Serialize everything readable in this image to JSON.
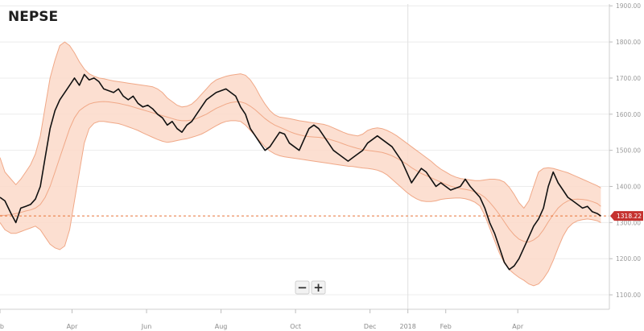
{
  "chart_data": {
    "type": "line",
    "title": "NEPSE",
    "xlabel": "",
    "ylabel": "",
    "ylim": [
      1060,
      1905
    ],
    "xlim": [
      "2017-02-01",
      "2018-06-15"
    ],
    "grid": true,
    "legend": "none",
    "y_ticks": [
      "1100.00",
      "1200.00",
      "1300.00",
      "1400.00",
      "1500.00",
      "1600.00",
      "1700.00",
      "1800.00",
      "1900.00"
    ],
    "x_ticks": [
      {
        "date": "2017-02-01",
        "label": "eb"
      },
      {
        "date": "2017-04-01",
        "label": "Apr"
      },
      {
        "date": "2017-06-01",
        "label": "Jun"
      },
      {
        "date": "2017-08-01",
        "label": "Aug"
      },
      {
        "date": "2017-10-01",
        "label": "Oct"
      },
      {
        "date": "2017-12-01",
        "label": "Dec"
      },
      {
        "date": "2018-01-01",
        "label": "2018"
      },
      {
        "date": "2018-02-01",
        "label": "Feb"
      },
      {
        "date": "2018-04-01",
        "label": "Apr"
      }
    ],
    "last_value": "1318.22",
    "reference_line": 1318.22,
    "colors": {
      "price": "#111111",
      "band_fill": "#fbd9c9",
      "band_line": "#f0a887",
      "mid_line": "#f0a887",
      "reference": "#e8763a",
      "last_label_bg": "#c5322f",
      "grid": "#ececec"
    },
    "series": [
      {
        "x": [
          "2017-02-01",
          "2017-02-05",
          "2017-02-10",
          "2017-02-14",
          "2017-02-18",
          "2017-02-22",
          "2017-02-26",
          "2017-03-02",
          "2017-03-06",
          "2017-03-10",
          "2017-03-14",
          "2017-03-18",
          "2017-03-22",
          "2017-03-26",
          "2017-03-30",
          "2017-04-03",
          "2017-04-07",
          "2017-04-11",
          "2017-04-15",
          "2017-04-19",
          "2017-04-23",
          "2017-04-27",
          "2017-05-01",
          "2017-05-05",
          "2017-05-09",
          "2017-05-13",
          "2017-05-17",
          "2017-05-21",
          "2017-05-25",
          "2017-05-29",
          "2017-06-02",
          "2017-06-06",
          "2017-06-10",
          "2017-06-14",
          "2017-06-18",
          "2017-06-22",
          "2017-06-26",
          "2017-06-30",
          "2017-07-04",
          "2017-07-08",
          "2017-07-12",
          "2017-07-16",
          "2017-07-20",
          "2017-07-24",
          "2017-07-28",
          "2017-08-01",
          "2017-08-05",
          "2017-08-09",
          "2017-08-13",
          "2017-08-17",
          "2017-08-21",
          "2017-08-25",
          "2017-08-29",
          "2017-09-02",
          "2017-09-06",
          "2017-09-10",
          "2017-09-14",
          "2017-09-18",
          "2017-09-22",
          "2017-09-26",
          "2017-09-30",
          "2017-10-04",
          "2017-10-08",
          "2017-10-12",
          "2017-10-16",
          "2017-10-20",
          "2017-10-24",
          "2017-10-28",
          "2017-11-01",
          "2017-11-05",
          "2017-11-09",
          "2017-11-13",
          "2017-11-17",
          "2017-11-21",
          "2017-11-25",
          "2017-11-29",
          "2017-12-03",
          "2017-12-07",
          "2017-12-11",
          "2017-12-15",
          "2017-12-19",
          "2017-12-23",
          "2017-12-27",
          "2017-12-31",
          "2018-01-04",
          "2018-01-08",
          "2018-01-12",
          "2018-01-16",
          "2018-01-20",
          "2018-01-24",
          "2018-01-28",
          "2018-02-01",
          "2018-02-05",
          "2018-02-09",
          "2018-02-13",
          "2018-02-17",
          "2018-02-21",
          "2018-02-25",
          "2018-03-01",
          "2018-03-05",
          "2018-03-09",
          "2018-03-13",
          "2018-03-17",
          "2018-03-21",
          "2018-03-25",
          "2018-03-29",
          "2018-04-02",
          "2018-04-06",
          "2018-04-10",
          "2018-04-14",
          "2018-04-18",
          "2018-04-22",
          "2018-04-26",
          "2018-04-30",
          "2018-05-04",
          "2018-05-08",
          "2018-05-12",
          "2018-05-16",
          "2018-05-20",
          "2018-05-24",
          "2018-05-28",
          "2018-06-01",
          "2018-06-05",
          "2018-06-08"
        ],
        "price": [
          1370,
          1360,
          1325,
          1300,
          1340,
          1345,
          1350,
          1365,
          1400,
          1480,
          1560,
          1610,
          1640,
          1660,
          1680,
          1700,
          1680,
          1710,
          1695,
          1700,
          1690,
          1670,
          1665,
          1660,
          1670,
          1650,
          1640,
          1650,
          1630,
          1620,
          1625,
          1615,
          1600,
          1590,
          1570,
          1580,
          1560,
          1550,
          1570,
          1580,
          1600,
          1620,
          1640,
          1650,
          1660,
          1665,
          1670,
          1660,
          1650,
          1620,
          1600,
          1560,
          1540,
          1520,
          1500,
          1510,
          1530,
          1550,
          1545,
          1520,
          1510,
          1500,
          1530,
          1560,
          1570,
          1560,
          1540,
          1520,
          1500,
          1490,
          1480,
          1470,
          1480,
          1490,
          1500,
          1520,
          1530,
          1540,
          1530,
          1520,
          1510,
          1490,
          1470,
          1440,
          1410,
          1430,
          1450,
          1440,
          1420,
          1400,
          1410,
          1400,
          1390,
          1395,
          1400,
          1420,
          1400,
          1385,
          1370,
          1340,
          1300,
          1270,
          1230,
          1190,
          1170,
          1180,
          1200,
          1230,
          1260,
          1290,
          1310,
          1340,
          1400,
          1440,
          1410,
          1390,
          1370,
          1360,
          1350,
          1340,
          1345,
          1330,
          1325,
          1318.22
        ],
        "mid": [
          1320,
          1320,
          1322,
          1325,
          1328,
          1332,
          1335,
          1340,
          1350,
          1370,
          1400,
          1440,
          1480,
          1520,
          1560,
          1590,
          1610,
          1620,
          1628,
          1632,
          1634,
          1635,
          1634,
          1632,
          1630,
          1627,
          1624,
          1620,
          1616,
          1612,
          1608,
          1604,
          1600,
          1596,
          1592,
          1588,
          1584,
          1582,
          1582,
          1584,
          1588,
          1594,
          1600,
          1608,
          1616,
          1622,
          1628,
          1632,
          1634,
          1634,
          1630,
          1622,
          1612,
          1600,
          1588,
          1578,
          1570,
          1564,
          1558,
          1552,
          1547,
          1543,
          1540,
          1538,
          1537,
          1536,
          1534,
          1531,
          1527,
          1523,
          1518,
          1513,
          1509,
          1505,
          1502,
          1500,
          1498,
          1496,
          1494,
          1490,
          1485,
          1478,
          1470,
          1462,
          1452,
          1444,
          1436,
          1430,
          1424,
          1418,
          1412,
          1406,
          1401,
          1397,
          1394,
          1392,
          1389,
          1385,
          1379,
          1370,
          1356,
          1340,
          1322,
          1302,
          1282,
          1266,
          1254,
          1248,
          1246,
          1252,
          1262,
          1280,
          1302,
          1322,
          1340,
          1352,
          1360,
          1364,
          1365,
          1364,
          1362,
          1358,
          1353,
          1345
        ],
        "upper": [
          1480,
          1440,
          1420,
          1405,
          1420,
          1440,
          1460,
          1490,
          1540,
          1620,
          1700,
          1750,
          1790,
          1800,
          1790,
          1770,
          1745,
          1725,
          1712,
          1705,
          1700,
          1698,
          1695,
          1692,
          1690,
          1688,
          1686,
          1684,
          1682,
          1680,
          1678,
          1676,
          1670,
          1660,
          1645,
          1635,
          1625,
          1620,
          1622,
          1628,
          1640,
          1655,
          1670,
          1685,
          1695,
          1700,
          1705,
          1708,
          1710,
          1712,
          1708,
          1695,
          1675,
          1650,
          1628,
          1610,
          1598,
          1592,
          1590,
          1588,
          1585,
          1582,
          1580,
          1578,
          1576,
          1574,
          1572,
          1568,
          1562,
          1556,
          1550,
          1545,
          1542,
          1540,
          1545,
          1555,
          1560,
          1562,
          1560,
          1555,
          1548,
          1540,
          1530,
          1520,
          1510,
          1500,
          1490,
          1480,
          1470,
          1458,
          1448,
          1440,
          1432,
          1426,
          1422,
          1420,
          1418,
          1416,
          1416,
          1418,
          1420,
          1420,
          1418,
          1412,
          1398,
          1378,
          1355,
          1340,
          1360,
          1400,
          1440,
          1450,
          1452,
          1450,
          1446,
          1442,
          1438,
          1432,
          1426,
          1420,
          1414,
          1408,
          1402,
          1396
        ],
        "lower": [
          1300,
          1280,
          1270,
          1270,
          1275,
          1280,
          1285,
          1290,
          1280,
          1260,
          1240,
          1230,
          1225,
          1235,
          1280,
          1360,
          1440,
          1520,
          1560,
          1575,
          1580,
          1580,
          1578,
          1576,
          1574,
          1570,
          1565,
          1560,
          1555,
          1548,
          1542,
          1536,
          1530,
          1525,
          1522,
          1524,
          1527,
          1530,
          1532,
          1536,
          1540,
          1545,
          1552,
          1560,
          1568,
          1575,
          1580,
          1582,
          1582,
          1580,
          1570,
          1555,
          1540,
          1525,
          1510,
          1498,
          1490,
          1485,
          1482,
          1480,
          1478,
          1476,
          1474,
          1472,
          1470,
          1468,
          1466,
          1464,
          1462,
          1460,
          1458,
          1456,
          1455,
          1453,
          1451,
          1450,
          1448,
          1445,
          1440,
          1432,
          1420,
          1408,
          1396,
          1384,
          1374,
          1366,
          1360,
          1358,
          1358,
          1360,
          1364,
          1366,
          1367,
          1368,
          1368,
          1366,
          1362,
          1356,
          1346,
          1320,
          1285,
          1250,
          1215,
          1188,
          1170,
          1158,
          1148,
          1140,
          1130,
          1125,
          1130,
          1145,
          1165,
          1195,
          1230,
          1262,
          1285,
          1298,
          1305,
          1308,
          1310,
          1308,
          1305,
          1300
        ]
      }
    ]
  },
  "ui": {
    "title": "NEPSE",
    "zoom_out": "−",
    "zoom_in": "+"
  }
}
